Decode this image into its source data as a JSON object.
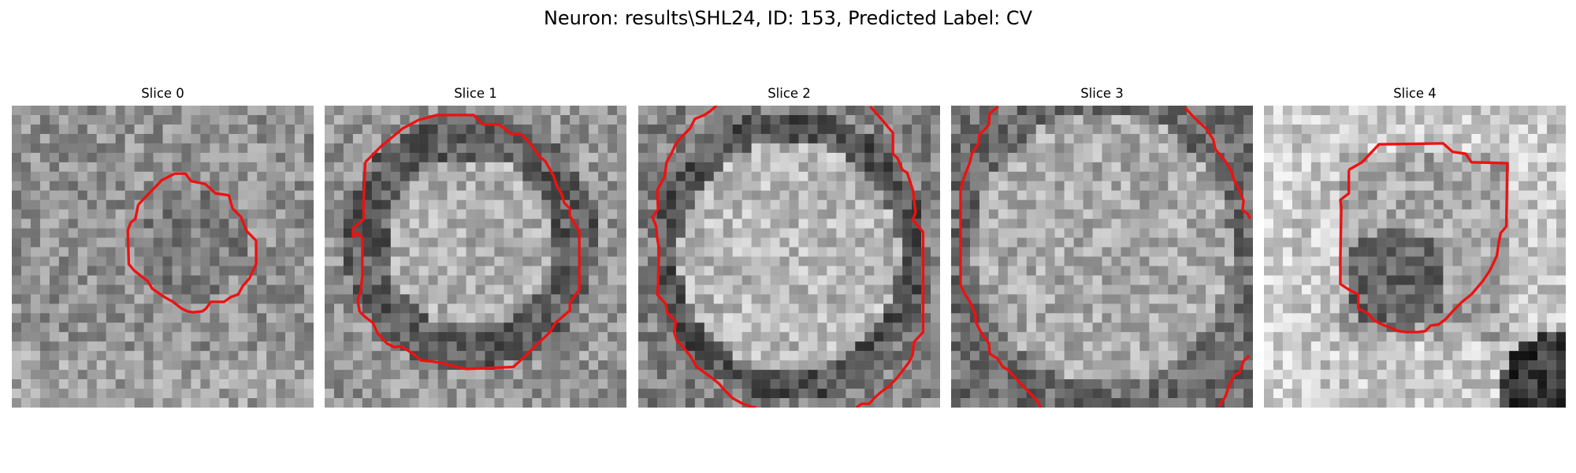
{
  "figure": {
    "title": "Neuron: results\\SHL24, ID: 153, Predicted Label: CV",
    "contour_color": "#ee1111",
    "colormap": "grayscale",
    "slices": [
      {
        "title": "Slice 0"
      },
      {
        "title": "Slice 1"
      },
      {
        "title": "Slice 2"
      },
      {
        "title": "Slice 3"
      },
      {
        "title": "Slice 4"
      }
    ]
  }
}
